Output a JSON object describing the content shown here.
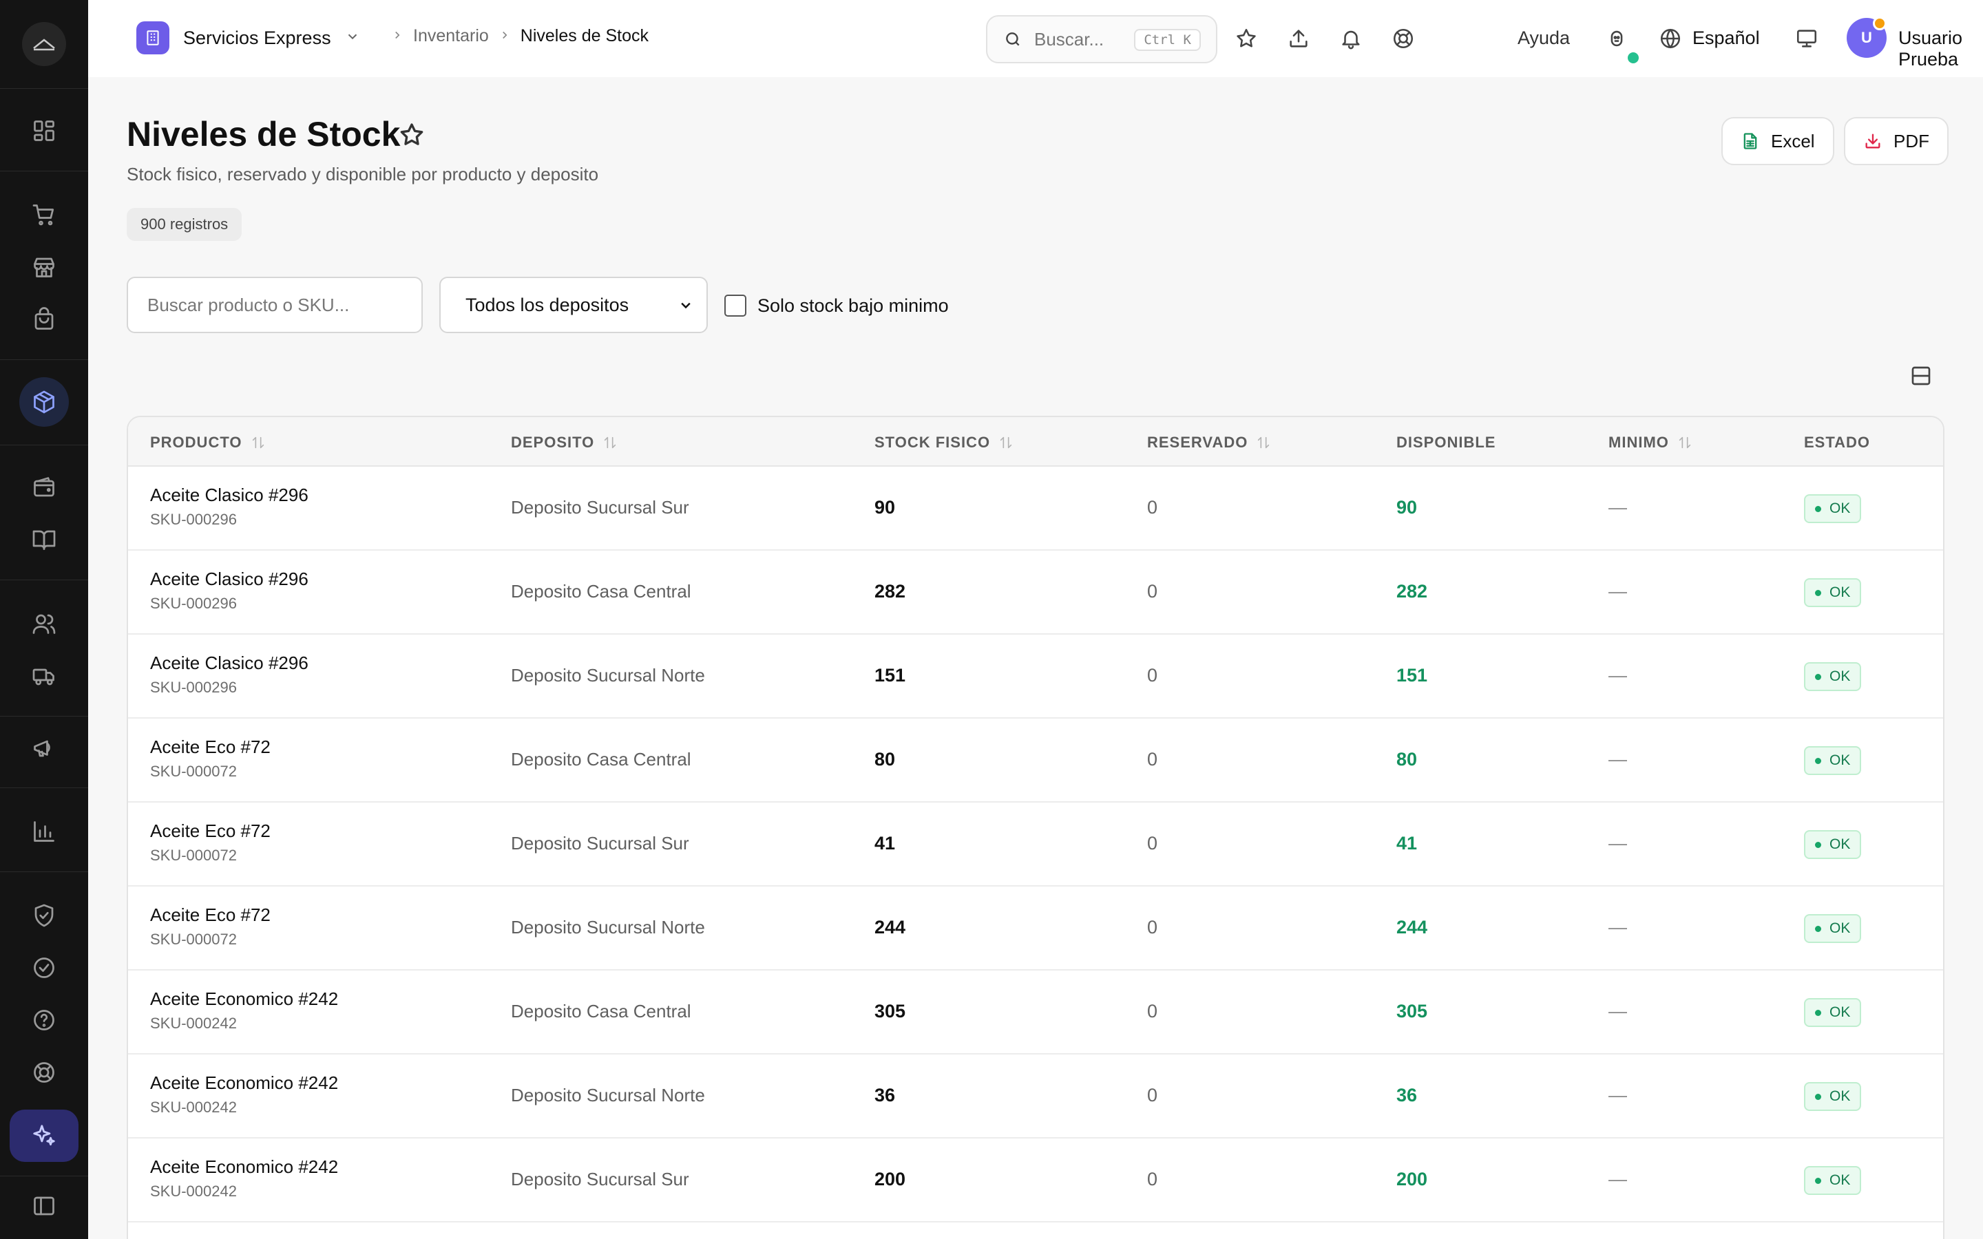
{
  "topbar": {
    "company": "Servicios Express",
    "breadcrumb": [
      "Inventario",
      "Niveles de Stock"
    ],
    "search_placeholder": "Buscar...",
    "search_shortcut": "Ctrl K",
    "help_label": "Ayuda",
    "language": "Español",
    "user_initial": "U",
    "user_name": "Usuario Prueba"
  },
  "page": {
    "title": "Niveles de Stock",
    "subtitle": "Stock fisico, reservado y disponible por producto y deposito",
    "record_count": "900 registros",
    "export_excel": "Excel",
    "export_pdf": "PDF"
  },
  "filters": {
    "search_placeholder": "Buscar producto o SKU...",
    "deposit_selected": "Todos los depositos",
    "low_stock_label": "Solo stock bajo minimo"
  },
  "table": {
    "columns": [
      "PRODUCTO",
      "DEPOSITO",
      "STOCK FISICO",
      "RESERVADO",
      "DISPONIBLE",
      "MINIMO",
      "ESTADO"
    ],
    "rows": [
      {
        "name": "Aceite Clasico #296",
        "sku": "SKU-000296",
        "deposit": "Deposito Sucursal Sur",
        "physical": "90",
        "reserved": "0",
        "available": "90",
        "minimum": "—",
        "status": "OK"
      },
      {
        "name": "Aceite Clasico #296",
        "sku": "SKU-000296",
        "deposit": "Deposito Casa Central",
        "physical": "282",
        "reserved": "0",
        "available": "282",
        "minimum": "—",
        "status": "OK"
      },
      {
        "name": "Aceite Clasico #296",
        "sku": "SKU-000296",
        "deposit": "Deposito Sucursal Norte",
        "physical": "151",
        "reserved": "0",
        "available": "151",
        "minimum": "—",
        "status": "OK"
      },
      {
        "name": "Aceite Eco #72",
        "sku": "SKU-000072",
        "deposit": "Deposito Casa Central",
        "physical": "80",
        "reserved": "0",
        "available": "80",
        "minimum": "—",
        "status": "OK"
      },
      {
        "name": "Aceite Eco #72",
        "sku": "SKU-000072",
        "deposit": "Deposito Sucursal Sur",
        "physical": "41",
        "reserved": "0",
        "available": "41",
        "minimum": "—",
        "status": "OK"
      },
      {
        "name": "Aceite Eco #72",
        "sku": "SKU-000072",
        "deposit": "Deposito Sucursal Norte",
        "physical": "244",
        "reserved": "0",
        "available": "244",
        "minimum": "—",
        "status": "OK"
      },
      {
        "name": "Aceite Economico #242",
        "sku": "SKU-000242",
        "deposit": "Deposito Casa Central",
        "physical": "305",
        "reserved": "0",
        "available": "305",
        "minimum": "—",
        "status": "OK"
      },
      {
        "name": "Aceite Economico #242",
        "sku": "SKU-000242",
        "deposit": "Deposito Sucursal Norte",
        "physical": "36",
        "reserved": "0",
        "available": "36",
        "minimum": "—",
        "status": "OK"
      },
      {
        "name": "Aceite Economico #242",
        "sku": "SKU-000242",
        "deposit": "Deposito Sucursal Sur",
        "physical": "200",
        "reserved": "0",
        "available": "200",
        "minimum": "—",
        "status": "OK"
      }
    ]
  },
  "colors": {
    "accent": "#6d5ce8",
    "sidebar_bg": "#141414",
    "available_green": "#14915e",
    "ok_badge_bg": "#eafaf0"
  },
  "icons": {
    "sidebar": [
      "dashboard-icon",
      "cart-icon",
      "store-icon",
      "shopping-bag-icon",
      "box-icon",
      "wallet-icon",
      "book-icon",
      "users-icon",
      "truck-icon",
      "megaphone-icon",
      "bar-chart-icon",
      "shield-check-icon",
      "check-circle-icon",
      "help-circle-icon",
      "lifebuoy-icon",
      "sparkles-icon",
      "sidebar-toggle-icon"
    ]
  }
}
